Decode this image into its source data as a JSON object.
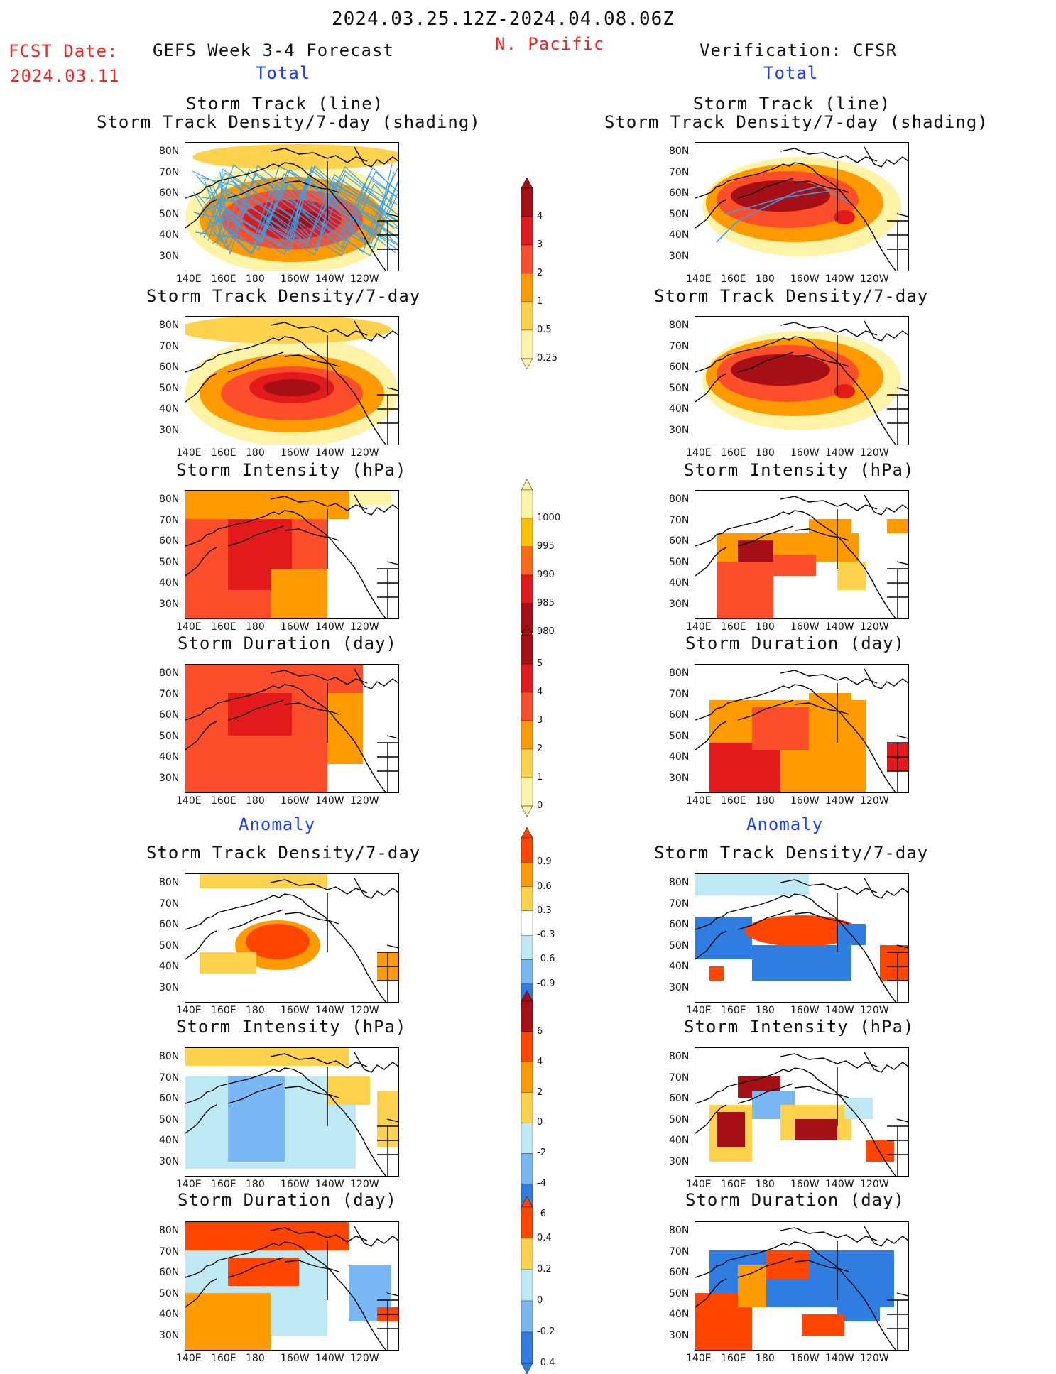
{
  "header": {
    "date_range": "2024.03.25.12Z-2024.04.08.06Z",
    "region": "N. Pacific",
    "fcst_label": "FCST Date:",
    "fcst_date": "2024.03.11",
    "model": "GEFS Week 3-4 Forecast",
    "verification": "Verification: CFSR"
  },
  "sections": {
    "total": "Total",
    "anomaly": "Anomaly"
  },
  "panel_titles": {
    "track_line": "Storm Track (line)",
    "track_shading": "Storm Track Density/7-day (shading)",
    "density": "Storm Track Density/7-day",
    "intensity": "Storm Intensity (hPa)",
    "duration": "Storm Duration (day)"
  },
  "axes": {
    "lat_ticks": [
      "80N",
      "70N",
      "60N",
      "50N",
      "40N",
      "30N"
    ],
    "lon_ticks": [
      "140E",
      "160E",
      "180",
      "160W",
      "140W",
      "120W"
    ]
  },
  "colorbars": {
    "density_total": {
      "labels": [
        "4",
        "3",
        "2",
        "1",
        "0.5",
        "0.25"
      ],
      "colors": [
        "#a50f15",
        "#e31a1c",
        "#fc4e2a",
        "#ff9a00",
        "#ffd24d",
        "#fff3a8"
      ]
    },
    "intensity_total": {
      "labels": [
        "1000",
        "995",
        "990",
        "985",
        "980"
      ],
      "colors": [
        "#fff3a8",
        "#ffc000",
        "#fc6a1a",
        "#e31a1c",
        "#a50f15"
      ]
    },
    "duration_total": {
      "labels": [
        "5",
        "4",
        "3",
        "2",
        "1",
        "0"
      ],
      "colors": [
        "#a50f15",
        "#e31a1c",
        "#fc4e2a",
        "#ff9a00",
        "#ffd24d",
        "#fff3a8"
      ]
    },
    "density_anom": {
      "labels": [
        "0.9",
        "0.6",
        "0.3",
        "-0.3",
        "-0.6",
        "-0.9"
      ],
      "colors": [
        "#ff4500",
        "#ff9a00",
        "#ffd24d",
        "#ffffff",
        "#bfeaf5",
        "#7ab8f5",
        "#2f7de1"
      ]
    },
    "intensity_anom": {
      "labels": [
        "6",
        "4",
        "2",
        "0",
        "-2",
        "-4",
        "-6"
      ],
      "colors": [
        "#a50f15",
        "#ff4500",
        "#ff9a00",
        "#ffd24d",
        "#bfeaf5",
        "#7ab8f5",
        "#2f7de1"
      ]
    },
    "duration_anom": {
      "labels": [
        "0.4",
        "0.2",
        "0",
        "-0.2",
        "-0.4"
      ],
      "colors": [
        "#ff4500",
        "#ffd24d",
        "#bfeaf5",
        "#7ab8f5",
        "#2f7de1"
      ]
    }
  },
  "colors": {
    "fcst_red": "#ff2020",
    "section_blue": "#1a3cff",
    "track_line": "#3aa0e8"
  }
}
